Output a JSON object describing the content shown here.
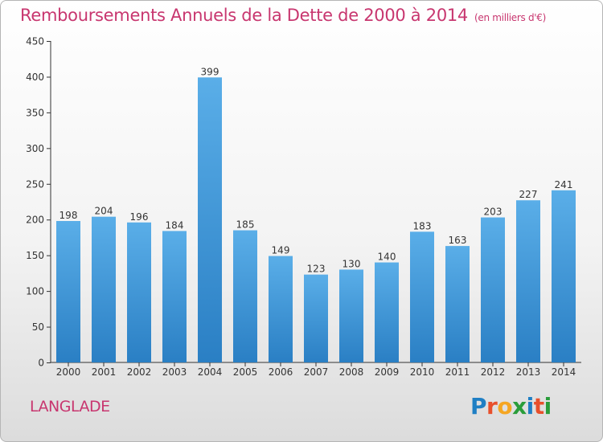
{
  "header": {
    "title": "Remboursements Annuels de la Dette de 2000 à 2014",
    "unit": "(en milliers d'€)"
  },
  "footer": {
    "commune": "LANGLADE",
    "logo_text": "Proxiti",
    "logo_colors": [
      "#1f7fc4",
      "#e8502c",
      "#f5a623",
      "#2a9d3a",
      "#1f7fc4",
      "#e8502c",
      "#2a9d3a"
    ]
  },
  "chart_data": {
    "type": "bar",
    "title": "Remboursements Annuels de la Dette de 2000 à 2014",
    "xlabel": "",
    "ylabel": "",
    "categories": [
      "2000",
      "2001",
      "2002",
      "2003",
      "2004",
      "2005",
      "2006",
      "2007",
      "2008",
      "2009",
      "2010",
      "2011",
      "2012",
      "2013",
      "2014"
    ],
    "values": [
      198,
      204,
      196,
      184,
      399,
      185,
      149,
      123,
      130,
      140,
      183,
      163,
      203,
      227,
      241
    ],
    "ylim": [
      0,
      450
    ],
    "yticks": [
      0,
      50,
      100,
      150,
      200,
      250,
      300,
      350,
      400,
      450
    ],
    "grid": false,
    "legend": "none",
    "bar_color": "#4fa3e0",
    "bar_color_dark": "#2a7fc4"
  }
}
